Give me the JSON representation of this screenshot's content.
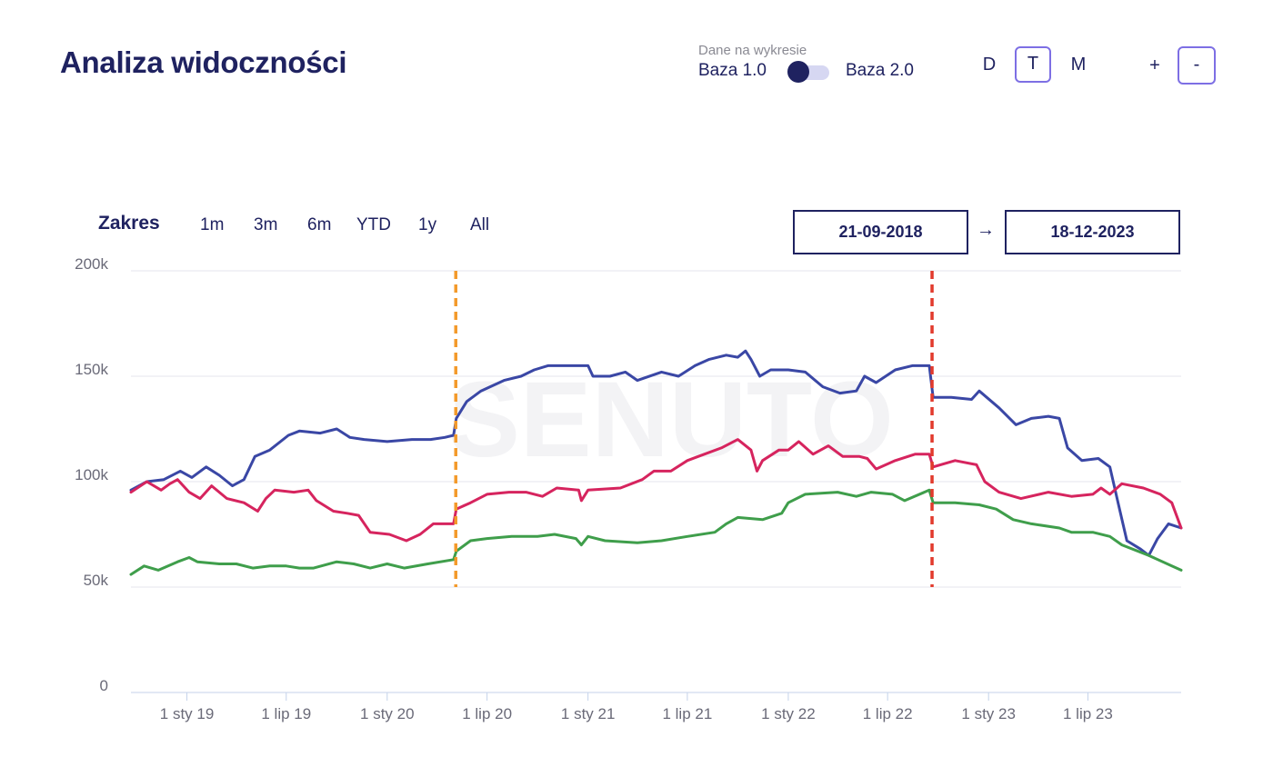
{
  "header": {
    "title": "Analiza widoczności",
    "toggle": {
      "caption": "Dane na wykresie",
      "left": "Baza 1.0",
      "right": "Baza 2.0",
      "selected": "Baza 1.0"
    },
    "granularity": {
      "items": [
        "D",
        "T",
        "M"
      ],
      "active": "T"
    },
    "zoom": {
      "plus": "+",
      "minus": "-",
      "active": "-"
    }
  },
  "range": {
    "label": "Zakres",
    "buttons": [
      "1m",
      "3m",
      "6m",
      "YTD",
      "1y",
      "All"
    ],
    "from": "21-09-2018",
    "arrow": "→",
    "to": "18-12-2023"
  },
  "chart_data": {
    "type": "line",
    "watermark": "SENUTO",
    "x_range": [
      "2018-09-21",
      "2023-12-18"
    ],
    "ylim": [
      0,
      200000
    ],
    "y_ticks": [
      "0",
      "50k",
      "100k",
      "150k",
      "200k"
    ],
    "x_ticks": [
      "1 sty 19",
      "1 lip 19",
      "1 sty 20",
      "1 lip 20",
      "1 sty 21",
      "1 lip 21",
      "1 sty 22",
      "1 lip 22",
      "1 sty 23",
      "1 lip 23"
    ],
    "x_tick_dates": [
      "2019-01-01",
      "2019-07-01",
      "2020-01-01",
      "2020-07-01",
      "2021-01-01",
      "2021-07-01",
      "2022-01-01",
      "2022-07-01",
      "2023-01-01",
      "2023-07-01"
    ],
    "markers": [
      {
        "date": "2020-05-05",
        "color": "#f39a2b"
      },
      {
        "date": "2022-09-20",
        "color": "#e23a2c"
      }
    ],
    "series": [
      {
        "color": "#3a47a5",
        "points": [
          [
            "2018-09-21",
            96000
          ],
          [
            "2018-10-20",
            100000
          ],
          [
            "2018-11-20",
            101000
          ],
          [
            "2018-12-20",
            105000
          ],
          [
            "2019-01-10",
            102000
          ],
          [
            "2019-02-05",
            107000
          ],
          [
            "2019-03-01",
            103000
          ],
          [
            "2019-03-25",
            98000
          ],
          [
            "2019-04-15",
            101000
          ],
          [
            "2019-05-05",
            112000
          ],
          [
            "2019-06-01",
            115000
          ],
          [
            "2019-07-05",
            122000
          ],
          [
            "2019-07-25",
            124000
          ],
          [
            "2019-09-01",
            123000
          ],
          [
            "2019-10-01",
            125000
          ],
          [
            "2019-10-25",
            121000
          ],
          [
            "2019-11-20",
            120000
          ],
          [
            "2020-01-01",
            119000
          ],
          [
            "2020-02-15",
            120000
          ],
          [
            "2020-03-20",
            120000
          ],
          [
            "2020-04-15",
            121000
          ],
          [
            "2020-05-01",
            122000
          ],
          [
            "2020-05-06",
            130000
          ],
          [
            "2020-05-25",
            138000
          ],
          [
            "2020-06-20",
            143000
          ],
          [
            "2020-08-01",
            148000
          ],
          [
            "2020-09-01",
            150000
          ],
          [
            "2020-09-25",
            153000
          ],
          [
            "2020-10-20",
            155000
          ],
          [
            "2020-11-15",
            155000
          ],
          [
            "2020-12-15",
            155000
          ],
          [
            "2021-01-01",
            155000
          ],
          [
            "2021-01-10",
            150000
          ],
          [
            "2021-02-10",
            150000
          ],
          [
            "2021-03-10",
            152000
          ],
          [
            "2021-04-01",
            148000
          ],
          [
            "2021-05-15",
            152000
          ],
          [
            "2021-06-15",
            150000
          ],
          [
            "2021-07-15",
            155000
          ],
          [
            "2021-08-10",
            158000
          ],
          [
            "2021-09-10",
            160000
          ],
          [
            "2021-10-01",
            159000
          ],
          [
            "2021-10-15",
            162000
          ],
          [
            "2021-10-25",
            158000
          ],
          [
            "2021-11-10",
            150000
          ],
          [
            "2021-11-30",
            153000
          ],
          [
            "2022-01-01",
            153000
          ],
          [
            "2022-02-01",
            152000
          ],
          [
            "2022-03-05",
            145000
          ],
          [
            "2022-04-05",
            142000
          ],
          [
            "2022-05-05",
            143000
          ],
          [
            "2022-05-20",
            150000
          ],
          [
            "2022-06-10",
            147000
          ],
          [
            "2022-07-15",
            153000
          ],
          [
            "2022-08-15",
            155000
          ],
          [
            "2022-09-15",
            155000
          ],
          [
            "2022-09-22",
            140000
          ],
          [
            "2022-10-25",
            140000
          ],
          [
            "2022-12-01",
            139000
          ],
          [
            "2022-12-15",
            143000
          ],
          [
            "2023-01-20",
            135000
          ],
          [
            "2023-02-20",
            127000
          ],
          [
            "2023-03-20",
            130000
          ],
          [
            "2023-04-20",
            131000
          ],
          [
            "2023-05-10",
            130000
          ],
          [
            "2023-05-25",
            116000
          ],
          [
            "2023-06-20",
            110000
          ],
          [
            "2023-07-20",
            111000
          ],
          [
            "2023-08-10",
            107000
          ],
          [
            "2023-08-25",
            90000
          ],
          [
            "2023-09-10",
            72000
          ],
          [
            "2023-10-05",
            68000
          ],
          [
            "2023-10-20",
            65000
          ],
          [
            "2023-11-05",
            73000
          ],
          [
            "2023-11-25",
            80000
          ],
          [
            "2023-12-18",
            78000
          ]
        ]
      },
      {
        "color": "#d6245e",
        "points": [
          [
            "2018-09-21",
            95000
          ],
          [
            "2018-10-20",
            100000
          ],
          [
            "2018-11-15",
            96000
          ],
          [
            "2018-12-01",
            99000
          ],
          [
            "2018-12-15",
            101000
          ],
          [
            "2019-01-05",
            95000
          ],
          [
            "2019-01-25",
            92000
          ],
          [
            "2019-02-15",
            98000
          ],
          [
            "2019-03-15",
            92000
          ],
          [
            "2019-04-15",
            90000
          ],
          [
            "2019-05-10",
            86000
          ],
          [
            "2019-05-25",
            92000
          ],
          [
            "2019-06-10",
            96000
          ],
          [
            "2019-07-15",
            95000
          ],
          [
            "2019-08-10",
            96000
          ],
          [
            "2019-08-25",
            91000
          ],
          [
            "2019-09-25",
            86000
          ],
          [
            "2019-10-20",
            85000
          ],
          [
            "2019-11-10",
            84000
          ],
          [
            "2019-12-01",
            76000
          ],
          [
            "2020-01-05",
            75000
          ],
          [
            "2020-02-05",
            72000
          ],
          [
            "2020-03-01",
            75000
          ],
          [
            "2020-03-25",
            80000
          ],
          [
            "2020-05-01",
            80000
          ],
          [
            "2020-05-06",
            87000
          ],
          [
            "2020-06-01",
            90000
          ],
          [
            "2020-07-01",
            94000
          ],
          [
            "2020-08-10",
            95000
          ],
          [
            "2020-09-10",
            95000
          ],
          [
            "2020-10-10",
            93000
          ],
          [
            "2020-11-05",
            97000
          ],
          [
            "2020-12-15",
            96000
          ],
          [
            "2020-12-20",
            91000
          ],
          [
            "2021-01-01",
            96000
          ],
          [
            "2021-03-01",
            97000
          ],
          [
            "2021-04-10",
            101000
          ],
          [
            "2021-05-01",
            105000
          ],
          [
            "2021-06-01",
            105000
          ],
          [
            "2021-07-01",
            110000
          ],
          [
            "2021-08-01",
            113000
          ],
          [
            "2021-09-01",
            116000
          ],
          [
            "2021-10-01",
            120000
          ],
          [
            "2021-10-25",
            115000
          ],
          [
            "2021-11-05",
            105000
          ],
          [
            "2021-11-15",
            110000
          ],
          [
            "2021-12-15",
            115000
          ],
          [
            "2022-01-01",
            115000
          ],
          [
            "2022-01-20",
            119000
          ],
          [
            "2022-02-15",
            113000
          ],
          [
            "2022-03-15",
            117000
          ],
          [
            "2022-04-10",
            112000
          ],
          [
            "2022-05-10",
            112000
          ],
          [
            "2022-05-25",
            111000
          ],
          [
            "2022-06-10",
            106000
          ],
          [
            "2022-07-15",
            110000
          ],
          [
            "2022-08-20",
            113000
          ],
          [
            "2022-09-15",
            113000
          ],
          [
            "2022-09-22",
            107000
          ],
          [
            "2022-11-01",
            110000
          ],
          [
            "2022-12-10",
            108000
          ],
          [
            "2022-12-25",
            100000
          ],
          [
            "2023-01-20",
            95000
          ],
          [
            "2023-03-01",
            92000
          ],
          [
            "2023-04-20",
            95000
          ],
          [
            "2023-06-01",
            93000
          ],
          [
            "2023-07-10",
            94000
          ],
          [
            "2023-07-25",
            97000
          ],
          [
            "2023-08-10",
            94000
          ],
          [
            "2023-09-01",
            99000
          ],
          [
            "2023-10-10",
            97000
          ],
          [
            "2023-11-10",
            94000
          ],
          [
            "2023-12-01",
            90000
          ],
          [
            "2023-12-18",
            78000
          ]
        ]
      },
      {
        "color": "#3f9e4b",
        "points": [
          [
            "2018-09-21",
            56000
          ],
          [
            "2018-10-15",
            60000
          ],
          [
            "2018-11-10",
            58000
          ],
          [
            "2018-12-15",
            62000
          ],
          [
            "2019-01-05",
            64000
          ],
          [
            "2019-01-20",
            62000
          ],
          [
            "2019-03-01",
            61000
          ],
          [
            "2019-04-01",
            61000
          ],
          [
            "2019-05-01",
            59000
          ],
          [
            "2019-06-01",
            60000
          ],
          [
            "2019-07-01",
            60000
          ],
          [
            "2019-07-25",
            59000
          ],
          [
            "2019-08-20",
            59000
          ],
          [
            "2019-10-01",
            62000
          ],
          [
            "2019-11-01",
            61000
          ],
          [
            "2019-12-01",
            59000
          ],
          [
            "2020-01-01",
            61000
          ],
          [
            "2020-02-01",
            59000
          ],
          [
            "2020-03-15",
            61000
          ],
          [
            "2020-05-01",
            63000
          ],
          [
            "2020-05-06",
            67000
          ],
          [
            "2020-06-01",
            72000
          ],
          [
            "2020-07-01",
            73000
          ],
          [
            "2020-08-15",
            74000
          ],
          [
            "2020-10-01",
            74000
          ],
          [
            "2020-11-01",
            75000
          ],
          [
            "2020-12-10",
            73000
          ],
          [
            "2020-12-20",
            70000
          ],
          [
            "2021-01-01",
            74000
          ],
          [
            "2021-02-01",
            72000
          ],
          [
            "2021-04-01",
            71000
          ],
          [
            "2021-05-15",
            72000
          ],
          [
            "2021-07-01",
            74000
          ],
          [
            "2021-08-20",
            76000
          ],
          [
            "2021-09-10",
            80000
          ],
          [
            "2021-10-01",
            83000
          ],
          [
            "2021-11-15",
            82000
          ],
          [
            "2021-12-20",
            85000
          ],
          [
            "2022-01-01",
            90000
          ],
          [
            "2022-02-01",
            94000
          ],
          [
            "2022-04-01",
            95000
          ],
          [
            "2022-05-05",
            93000
          ],
          [
            "2022-06-01",
            95000
          ],
          [
            "2022-07-10",
            94000
          ],
          [
            "2022-08-01",
            91000
          ],
          [
            "2022-09-15",
            96000
          ],
          [
            "2022-09-22",
            90000
          ],
          [
            "2022-11-01",
            90000
          ],
          [
            "2022-12-15",
            89000
          ],
          [
            "2023-01-15",
            87000
          ],
          [
            "2023-02-15",
            82000
          ],
          [
            "2023-03-20",
            80000
          ],
          [
            "2023-05-10",
            78000
          ],
          [
            "2023-06-01",
            76000
          ],
          [
            "2023-07-10",
            76000
          ],
          [
            "2023-08-10",
            74000
          ],
          [
            "2023-09-01",
            70000
          ],
          [
            "2023-10-20",
            65000
          ],
          [
            "2023-12-01",
            60000
          ],
          [
            "2023-12-18",
            58000
          ]
        ]
      }
    ]
  }
}
